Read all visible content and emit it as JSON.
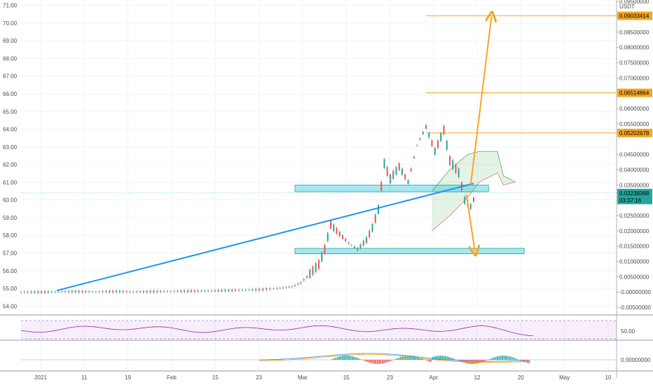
{
  "chart_data": {
    "type": "line",
    "left_axis": {
      "ticks": [
        "71.00",
        "70.00",
        "69.00",
        "68.00",
        "67.00",
        "66.00",
        "65.00",
        "64.00",
        "63.00",
        "62.00",
        "61.00",
        "60.00",
        "59.00",
        "58.00",
        "57.00",
        "56.00",
        "55.00",
        "54.00"
      ],
      "range": [
        53.5,
        71.3
      ]
    },
    "right_axis": {
      "unit": "USDT",
      "ticks": [
        "0.09500000",
        "0.08500000",
        "0.08000000",
        "0.07500000",
        "0.07000000",
        "0.06000000",
        "0.05500000",
        "0.04500000",
        "0.04000000",
        "0.03500000",
        "0.02500000",
        "0.02000000",
        "0.01500000",
        "0.01000000",
        "0.00500000",
        "-0.00000000",
        "-0.00500000"
      ],
      "tick_values": [
        0.095,
        0.085,
        0.08,
        0.075,
        0.07,
        0.06,
        0.055,
        0.045,
        0.04,
        0.035,
        0.025,
        0.02,
        0.015,
        0.01,
        0.005,
        0.0,
        -0.005
      ],
      "range": [
        -0.0075,
        0.0955
      ]
    },
    "x_axis": {
      "ticks": [
        "2021",
        "11",
        "19",
        "Feb",
        "15",
        "23",
        "Mar",
        "15",
        "23",
        "Apr",
        "12",
        "20",
        "May",
        "10"
      ]
    },
    "price_badges": [
      {
        "label": "0.09033414",
        "value": 0.09033414
      },
      {
        "label": "0.06514864",
        "value": 0.06514864
      },
      {
        "label": "0.05202678",
        "value": 0.05202678
      }
    ],
    "current_price": {
      "label": "0.03238368",
      "timer": "03:37:16",
      "value": 0.03238368
    },
    "trendline": {
      "from": [
        0.06,
        0.0005
      ],
      "to": [
        0.76,
        0.0355
      ]
    },
    "projections": [
      {
        "direction": "up",
        "from": [
          0.755,
          0.035
        ],
        "to": [
          0.79,
          0.0901
        ]
      },
      {
        "direction": "down",
        "from": [
          0.748,
          0.0318
        ],
        "to": [
          0.762,
          0.0135
        ]
      }
    ],
    "zones": [
      {
        "x": [
          0.46,
          0.785
        ],
        "y": [
          0.0328,
          0.035
        ]
      },
      {
        "x": [
          0.46,
          0.845
        ],
        "y": [
          0.0125,
          0.0143
        ]
      }
    ],
    "price_series": [
      [
        0.0,
        0.0
      ],
      [
        0.04,
        0.0
      ],
      [
        0.08,
        0.0002
      ],
      [
        0.12,
        0.0001
      ],
      [
        0.16,
        0.0002
      ],
      [
        0.2,
        0.0001
      ],
      [
        0.24,
        0.0002
      ],
      [
        0.28,
        0.0003
      ],
      [
        0.32,
        0.0004
      ],
      [
        0.36,
        0.0006
      ],
      [
        0.4,
        0.0008
      ],
      [
        0.43,
        0.0012
      ],
      [
        0.455,
        0.0018
      ],
      [
        0.47,
        0.003
      ],
      [
        0.485,
        0.006
      ],
      [
        0.5,
        0.009
      ],
      [
        0.51,
        0.014
      ],
      [
        0.52,
        0.022
      ],
      [
        0.535,
        0.019
      ],
      [
        0.55,
        0.016
      ],
      [
        0.565,
        0.014
      ],
      [
        0.58,
        0.017
      ],
      [
        0.59,
        0.021
      ],
      [
        0.6,
        0.027
      ],
      [
        0.61,
        0.042
      ],
      [
        0.62,
        0.037
      ],
      [
        0.635,
        0.041
      ],
      [
        0.65,
        0.036
      ],
      [
        0.665,
        0.048
      ],
      [
        0.68,
        0.054
      ],
      [
        0.695,
        0.046
      ],
      [
        0.71,
        0.053
      ],
      [
        0.72,
        0.043
      ],
      [
        0.735,
        0.039
      ],
      [
        0.745,
        0.03
      ],
      [
        0.755,
        0.028
      ],
      [
        0.765,
        0.0325
      ]
    ],
    "cloud_upper": [
      [
        0.69,
        0.033
      ],
      [
        0.72,
        0.04
      ],
      [
        0.75,
        0.045
      ],
      [
        0.77,
        0.046
      ],
      [
        0.8,
        0.046
      ],
      [
        0.81,
        0.038
      ],
      [
        0.83,
        0.036
      ]
    ],
    "cloud_lower": [
      [
        0.69,
        0.02
      ],
      [
        0.72,
        0.025
      ],
      [
        0.75,
        0.031
      ],
      [
        0.77,
        0.036
      ],
      [
        0.8,
        0.039
      ],
      [
        0.81,
        0.035
      ],
      [
        0.83,
        0.036
      ]
    ],
    "rsi": {
      "label": "50.00",
      "range": [
        20,
        80
      ]
    },
    "macd": {
      "label": "0.00000000"
    }
  }
}
